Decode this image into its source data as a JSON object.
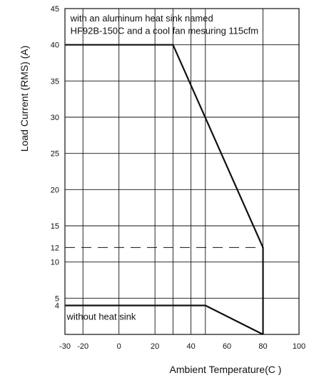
{
  "chart_data": {
    "type": "line",
    "xlabel": "Ambient Temperature(C )",
    "ylabel": "Load  Current (RMS) (A)",
    "xlim": [
      -30,
      100
    ],
    "ylim": [
      0,
      45
    ],
    "x_ticks": [
      -30,
      -20,
      0,
      20,
      40,
      60,
      80,
      100
    ],
    "x_tick_labels": [
      "-30",
      "-20",
      "0",
      "20",
      "40",
      "60",
      "80",
      "100"
    ],
    "y_ticks": [
      4,
      5,
      10,
      12,
      15,
      20,
      25,
      30,
      35,
      40,
      45
    ],
    "y_tick_labels": [
      "4",
      "5",
      "10",
      "12",
      "15",
      "20",
      "25",
      "30",
      "35",
      "40",
      "45"
    ],
    "x_grid": [
      -20,
      0,
      20,
      30,
      40,
      48,
      80
    ],
    "y_grid": [
      5,
      10,
      15,
      20,
      25,
      30,
      35,
      40
    ],
    "series": [
      {
        "x": [
          -30,
          30,
          80,
          80
        ],
        "y": [
          40,
          40,
          12,
          0
        ],
        "style": "solid"
      },
      {
        "x": [
          -30,
          48,
          80
        ],
        "y": [
          4,
          4,
          0
        ],
        "style": "solid"
      },
      {
        "x": [
          -30,
          80
        ],
        "y": [
          12,
          12
        ],
        "style": "dashed"
      }
    ],
    "annotations": [
      {
        "text": "with an aluminum heat sink named",
        "x": -27,
        "y": 43.2
      },
      {
        "text": "HF92B-150C and a cool fan mesuring 115cfm",
        "x": -27,
        "y": 41.5
      },
      {
        "text": "without heat sink",
        "x": -29,
        "y": 2
      }
    ],
    "colors": {
      "line": "#111111",
      "grid": "#111111",
      "background": "#ffffff"
    }
  }
}
